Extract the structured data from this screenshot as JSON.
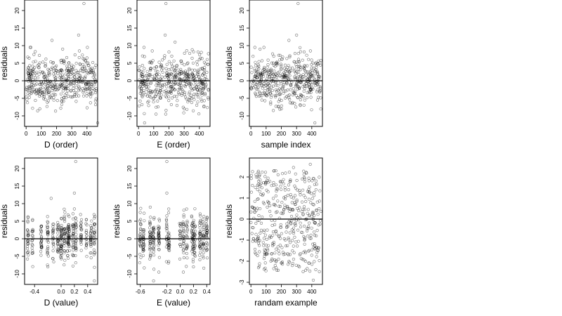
{
  "chart_data": [
    {
      "type": "scatter",
      "xlabel": "D (order)",
      "ylabel": "residuals",
      "xlim": [
        -10,
        470
      ],
      "ylim": [
        -13,
        23
      ],
      "xticks": [
        "0",
        "100",
        "200",
        "300",
        "400"
      ],
      "yticks": [
        "-10",
        "-5",
        "0",
        "5",
        "10",
        "15",
        "20"
      ],
      "hline": 0,
      "seed": 11,
      "pattern": "index",
      "n": 460,
      "points": [
        [
          380,
          22
        ],
        [
          345,
          13
        ],
        [
          170,
          11.5
        ],
        [
          470,
          -12
        ],
        [
          90,
          -8
        ],
        [
          240,
          9
        ],
        [
          350,
          8.5
        ],
        [
          60,
          8.3
        ],
        [
          400,
          6.5
        ]
      ]
    },
    {
      "type": "scatter",
      "xlabel": "E (order)",
      "ylabel": "residuals",
      "xlim": [
        -10,
        470
      ],
      "ylim": [
        -13,
        23
      ],
      "xticks": [
        "0",
        "100",
        "200",
        "300",
        "400"
      ],
      "yticks": [
        "-10",
        "-5",
        "0",
        "5",
        "10",
        "15",
        "20"
      ],
      "hline": 0,
      "seed": 23,
      "pattern": "index",
      "n": 460,
      "points": [
        [
          180,
          22
        ],
        [
          175,
          13
        ],
        [
          240,
          11
        ],
        [
          40,
          -12
        ],
        [
          90,
          8.5
        ],
        [
          200,
          8.2
        ],
        [
          300,
          -8
        ],
        [
          400,
          6
        ]
      ]
    },
    {
      "type": "scatter",
      "xlabel": "sample index",
      "ylabel": "residuals",
      "xlim": [
        -10,
        470
      ],
      "ylim": [
        -13,
        23
      ],
      "xticks": [
        "0",
        "100",
        "200",
        "300",
        "400"
      ],
      "yticks": [
        "-10",
        "-5",
        "0",
        "5",
        "10",
        "15",
        "20"
      ],
      "hline": 0,
      "seed": 37,
      "pattern": "index",
      "n": 460,
      "points": [
        [
          310,
          22
        ],
        [
          300,
          13
        ],
        [
          250,
          11.5
        ],
        [
          420,
          -12
        ],
        [
          200,
          -8
        ],
        [
          60,
          9
        ],
        [
          350,
          8.2
        ],
        [
          150,
          7
        ]
      ]
    },
    {
      "type": "scatter",
      "xlabel": "D (value)",
      "ylabel": "residuals",
      "xlim": [
        -0.55,
        0.55
      ],
      "ylim": [
        -13,
        23
      ],
      "xticks": [
        "-0.4",
        "0.0",
        "0.2",
        "0.4"
      ],
      "xtick_values": [
        -0.4,
        0.0,
        0.2,
        0.4
      ],
      "yticks": [
        "-10",
        "-5",
        "0",
        "5",
        "10",
        "15",
        "20"
      ],
      "hline": 0,
      "seed": 51,
      "pattern": "clusters",
      "centers": [
        -0.5,
        -0.43,
        -0.3,
        -0.2,
        -0.12,
        -0.05,
        0.0,
        0.05,
        0.1,
        0.12,
        0.18,
        0.22,
        0.3,
        0.38,
        0.45,
        0.5
      ],
      "n": 420,
      "points": [
        [
          0.22,
          22
        ],
        [
          0.2,
          13
        ],
        [
          -0.15,
          11.5
        ],
        [
          0.5,
          -12
        ],
        [
          -0.2,
          -8
        ],
        [
          0.2,
          8.5
        ]
      ]
    },
    {
      "type": "scatter",
      "xlabel": "E (value)",
      "ylabel": "residuals",
      "xlim": [
        -0.65,
        0.45
      ],
      "ylim": [
        -13,
        23
      ],
      "xticks": [
        "-0.6",
        "-0.2",
        "0.0",
        "0.2",
        "0.4"
      ],
      "xtick_values": [
        -0.6,
        -0.2,
        0.0,
        0.2,
        0.4
      ],
      "yticks": [
        "-10",
        "-5",
        "0",
        "5",
        "10",
        "15",
        "20"
      ],
      "hline": 0,
      "seed": 67,
      "pattern": "clusters",
      "centers": [
        -0.6,
        -0.55,
        -0.45,
        -0.4,
        -0.32,
        -0.2,
        -0.17,
        0.0,
        0.05,
        0.1,
        0.18,
        0.2,
        0.22,
        0.3,
        0.35,
        0.4
      ],
      "n": 420,
      "points": [
        [
          -0.2,
          22
        ],
        [
          -0.2,
          13
        ],
        [
          -0.4,
          -12
        ],
        [
          0.2,
          -8
        ],
        [
          -0.45,
          9
        ]
      ]
    },
    {
      "type": "scatter",
      "xlabel": "randam example",
      "ylabel": "residuals",
      "xlim": [
        -10,
        470
      ],
      "ylim": [
        -3.1,
        2.9
      ],
      "xticks": [
        "0",
        "100",
        "200",
        "300",
        "400"
      ],
      "yticks": [
        "-3",
        "-2",
        "-1",
        "0",
        "1",
        "2"
      ],
      "hline": 0,
      "seed": 89,
      "pattern": "uniform",
      "n": 440,
      "points": [
        [
          390,
          2.6
        ],
        [
          410,
          -2.9
        ],
        [
          150,
          -2.35
        ],
        [
          280,
          2.45
        ],
        [
          50,
          1.8
        ]
      ]
    }
  ]
}
